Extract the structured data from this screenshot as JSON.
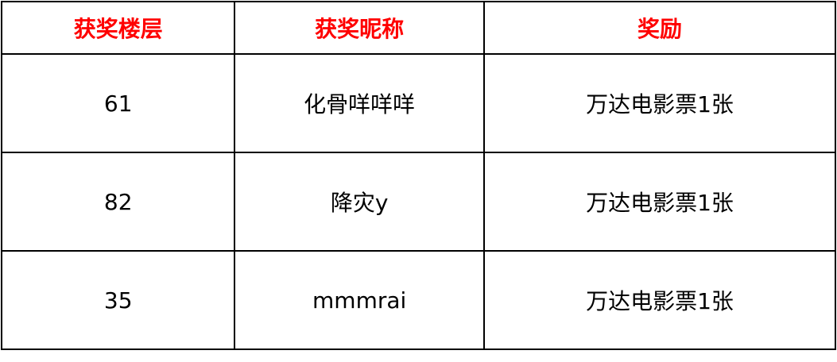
{
  "headers": [
    "获奖楼层",
    "获奖昵称",
    "奖励"
  ],
  "rows": [
    [
      "61",
      "化骨咩咩咩",
      "万达电影票1张"
    ],
    [
      "82",
      "降灾y",
      "万达电影票1张"
    ],
    [
      "35",
      "mmmrai",
      "万达电影票1张"
    ]
  ],
  "colors": {
    "header_text": "#ff0000"
  }
}
